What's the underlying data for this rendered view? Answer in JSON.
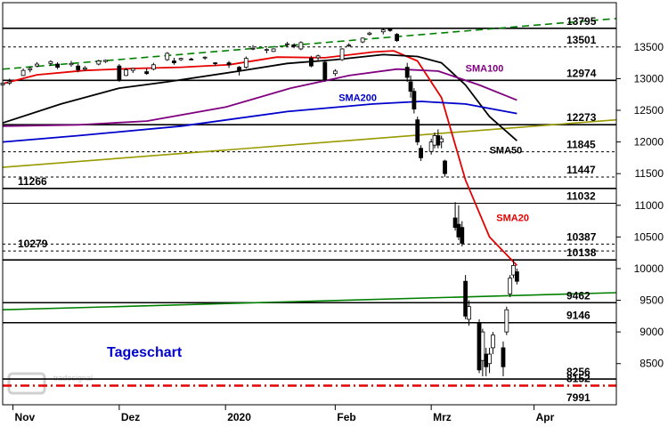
{
  "chart_data": {
    "type": "candlestick",
    "title": "Tageschart",
    "watermark": "tradesignal",
    "ylim": [
      7850,
      14200
    ],
    "y_ticks": [
      8500,
      9000,
      9500,
      10000,
      10500,
      11000,
      11500,
      12000,
      12500,
      13000,
      13500
    ],
    "x_labels": [
      "Nov",
      "Dez",
      "2020",
      "Feb",
      "Mrz",
      "Apr"
    ],
    "x_label_dates": [
      "2019-11-01",
      "2019-12-02",
      "2020-01-02",
      "2020-02-03",
      "2020-03-02",
      "2020-04-01"
    ],
    "x_range": [
      "2019-10-29",
      "2020-04-25"
    ],
    "colors": {
      "sma20": "#e60000",
      "sma50": "#000000",
      "sma100": "#800080",
      "sma200": "#0000cc",
      "up_candle": "#ffffff",
      "down_candle": "#000000",
      "trend_green": "#008000",
      "trend_olive": "#999900",
      "support_red": "#e60000"
    },
    "levels": [
      {
        "value": 13795,
        "label": "13795",
        "style": "solid",
        "label_side": "right"
      },
      {
        "value": 13501,
        "label": "13501",
        "style": "dashed",
        "label_side": "right"
      },
      {
        "value": 12974,
        "label": "12974",
        "style": "solid",
        "label_side": "right"
      },
      {
        "value": 12273,
        "label": "12273",
        "style": "solid",
        "label_side": "right"
      },
      {
        "value": 11845,
        "label": "11845",
        "style": "dashed",
        "label_side": "right"
      },
      {
        "value": 11447,
        "label": "11447",
        "style": "dashed",
        "label_side": "right"
      },
      {
        "value": 11266,
        "label": "11266",
        "style": "solid",
        "label_side": "left"
      },
      {
        "value": 11032,
        "label": "11032",
        "style": "thin",
        "label_side": "right"
      },
      {
        "value": 10387,
        "label": "10387",
        "style": "dashed",
        "label_side": "right"
      },
      {
        "value": 10279,
        "label": "10279",
        "style": "dashed",
        "label_side": "left"
      },
      {
        "value": 10138,
        "label": "10138",
        "style": "solid",
        "label_side": "right"
      },
      {
        "value": 9462,
        "label": "9462",
        "style": "solid",
        "label_side": "right"
      },
      {
        "value": 9146,
        "label": "9146",
        "style": "solid",
        "label_side": "right"
      },
      {
        "value": 8256,
        "label": "8256",
        "style": "solid",
        "label_side": "right"
      },
      {
        "value": 8152,
        "label": "8152",
        "style": "dashdot_red",
        "label_side": "right"
      },
      {
        "value": 7991,
        "label": "7991",
        "style": "none",
        "label_side": "right"
      }
    ],
    "trendlines": [
      {
        "name": "upper-trend",
        "from": [
          "2019-10-29",
          13150
        ],
        "to": [
          "2020-04-25",
          13950
        ],
        "color": "#008000",
        "style": "dashed"
      },
      {
        "name": "rising-support",
        "from": [
          "2019-10-29",
          11600
        ],
        "to": [
          "2020-04-25",
          12350
        ],
        "color": "#999900",
        "style": "solid"
      },
      {
        "name": "long-term-support",
        "from": [
          "2019-10-29",
          9350
        ],
        "to": [
          "2020-04-25",
          9620
        ],
        "color": "#008000",
        "style": "solid"
      }
    ],
    "series": [
      {
        "name": "SMA20",
        "label_at": [
          "2020-03-21",
          10750
        ],
        "points": [
          [
            "2019-10-29",
            12920
          ],
          [
            "2019-11-08",
            13060
          ],
          [
            "2019-11-22",
            13130
          ],
          [
            "2019-12-06",
            13160
          ],
          [
            "2019-12-20",
            13180
          ],
          [
            "2020-01-03",
            13220
          ],
          [
            "2020-01-17",
            13340
          ],
          [
            "2020-01-31",
            13330
          ],
          [
            "2020-02-14",
            13420
          ],
          [
            "2020-02-20",
            13440
          ],
          [
            "2020-02-27",
            13280
          ],
          [
            "2020-03-05",
            12700
          ],
          [
            "2020-03-12",
            11400
          ],
          [
            "2020-03-19",
            10500
          ],
          [
            "2020-03-27",
            10050
          ]
        ]
      },
      {
        "name": "SMA50",
        "label_at": [
          "2020-03-19",
          11820
        ],
        "points": [
          [
            "2019-10-29",
            12300
          ],
          [
            "2019-11-15",
            12600
          ],
          [
            "2019-12-02",
            12850
          ],
          [
            "2019-12-16",
            12950
          ],
          [
            "2020-01-06",
            13120
          ],
          [
            "2020-01-20",
            13240
          ],
          [
            "2020-02-03",
            13300
          ],
          [
            "2020-02-17",
            13380
          ],
          [
            "2020-02-27",
            13350
          ],
          [
            "2020-03-05",
            13250
          ],
          [
            "2020-03-12",
            12900
          ],
          [
            "2020-03-19",
            12400
          ],
          [
            "2020-03-27",
            12020
          ]
        ]
      },
      {
        "name": "SMA100",
        "label_at": [
          "2020-03-12",
          13110
        ],
        "points": [
          [
            "2019-10-29",
            12250
          ],
          [
            "2019-11-20",
            12270
          ],
          [
            "2019-12-10",
            12330
          ],
          [
            "2020-01-02",
            12550
          ],
          [
            "2020-01-21",
            12850
          ],
          [
            "2020-02-07",
            13050
          ],
          [
            "2020-02-21",
            13150
          ],
          [
            "2020-03-04",
            13120
          ],
          [
            "2020-03-16",
            12900
          ],
          [
            "2020-03-27",
            12660
          ]
        ]
      },
      {
        "name": "SMA200",
        "label_at": [
          "2020-02-04",
          12650
        ],
        "points": [
          [
            "2019-10-29",
            12000
          ],
          [
            "2019-11-20",
            12100
          ],
          [
            "2019-12-20",
            12250
          ],
          [
            "2020-01-20",
            12480
          ],
          [
            "2020-02-14",
            12600
          ],
          [
            "2020-02-28",
            12640
          ],
          [
            "2020-03-12",
            12600
          ],
          [
            "2020-03-27",
            12450
          ]
        ]
      }
    ],
    "candles_ohlc": [
      [
        "2019-10-29",
        12900,
        12960,
        12880,
        12930
      ],
      [
        "2019-10-31",
        12930,
        13000,
        12900,
        12950
      ],
      [
        "2019-11-04",
        13050,
        13160,
        13040,
        13130
      ],
      [
        "2019-11-06",
        13140,
        13190,
        13100,
        13160
      ],
      [
        "2019-11-08",
        13200,
        13260,
        13180,
        13230
      ],
      [
        "2019-11-12",
        13240,
        13290,
        13200,
        13270
      ],
      [
        "2019-11-14",
        13230,
        13260,
        13150,
        13180
      ],
      [
        "2019-11-18",
        13220,
        13280,
        13190,
        13240
      ],
      [
        "2019-11-20",
        13200,
        13230,
        13100,
        13140
      ],
      [
        "2019-11-22",
        13150,
        13200,
        13120,
        13170
      ],
      [
        "2019-11-26",
        13230,
        13300,
        13210,
        13280
      ],
      [
        "2019-11-28",
        13270,
        13300,
        13250,
        13290
      ],
      [
        "2019-12-02",
        13200,
        13230,
        12950,
        12980
      ],
      [
        "2019-12-04",
        13050,
        13170,
        13040,
        13140
      ],
      [
        "2019-12-06",
        13130,
        13170,
        13090,
        13160
      ],
      [
        "2019-12-10",
        13110,
        13160,
        13060,
        13080
      ],
      [
        "2019-12-12",
        13150,
        13250,
        13130,
        13220
      ],
      [
        "2019-12-16",
        13300,
        13420,
        13280,
        13400
      ],
      [
        "2019-12-18",
        13280,
        13330,
        13220,
        13250
      ],
      [
        "2019-12-20",
        13300,
        13330,
        13280,
        13320
      ],
      [
        "2019-12-23",
        13310,
        13330,
        13290,
        13300
      ],
      [
        "2019-12-27",
        13330,
        13350,
        13300,
        13340
      ],
      [
        "2019-12-30",
        13250,
        13260,
        13200,
        13240
      ],
      [
        "2020-01-03",
        13250,
        13280,
        13170,
        13220
      ],
      [
        "2020-01-06",
        13180,
        13200,
        13050,
        13130
      ],
      [
        "2020-01-08",
        13180,
        13350,
        13160,
        13320
      ],
      [
        "2020-01-10",
        13480,
        13530,
        13450,
        13480
      ],
      [
        "2020-01-14",
        13450,
        13480,
        13400,
        13460
      ],
      [
        "2020-01-16",
        13430,
        13480,
        13420,
        13470
      ],
      [
        "2020-01-20",
        13540,
        13580,
        13510,
        13550
      ],
      [
        "2020-01-22",
        13530,
        13560,
        13480,
        13510
      ],
      [
        "2020-01-24",
        13470,
        13590,
        13450,
        13570
      ],
      [
        "2020-01-27",
        13320,
        13360,
        13180,
        13200
      ],
      [
        "2020-01-29",
        13330,
        13380,
        13280,
        13360
      ],
      [
        "2020-01-31",
        13260,
        13280,
        12950,
        12980
      ],
      [
        "2020-02-03",
        13080,
        13150,
        13040,
        13120
      ],
      [
        "2020-02-05",
        13300,
        13480,
        13280,
        13470
      ],
      [
        "2020-02-07",
        13520,
        13560,
        13500,
        13530
      ],
      [
        "2020-02-11",
        13580,
        13650,
        13560,
        13640
      ],
      [
        "2020-02-13",
        13700,
        13740,
        13680,
        13720
      ],
      [
        "2020-02-17",
        13740,
        13790,
        13700,
        13770
      ],
      [
        "2020-02-19",
        13780,
        13795,
        13740,
        13760
      ],
      [
        "2020-02-21",
        13700,
        13720,
        13580,
        13600
      ],
      [
        "2020-02-24",
        13180,
        13250,
        12950,
        13020
      ],
      [
        "2020-02-25",
        12950,
        13050,
        12700,
        12800
      ],
      [
        "2020-02-26",
        12800,
        12850,
        12450,
        12520
      ],
      [
        "2020-02-27",
        12350,
        12400,
        11950,
        12000
      ],
      [
        "2020-02-28",
        11900,
        11950,
        11700,
        11750
      ],
      [
        "2020-03-02",
        11850,
        12050,
        11800,
        12000
      ],
      [
        "2020-03-03",
        11950,
        12150,
        11900,
        12100
      ],
      [
        "2020-03-04",
        12100,
        12200,
        11900,
        11950
      ],
      [
        "2020-03-05",
        12000,
        12100,
        11900,
        12050
      ],
      [
        "2020-03-06",
        11700,
        11720,
        11450,
        11500
      ],
      [
        "2020-03-09",
        10800,
        11050,
        10600,
        10650
      ],
      [
        "2020-03-10",
        10700,
        11000,
        10450,
        10500
      ],
      [
        "2020-03-11",
        10650,
        10750,
        10350,
        10400
      ],
      [
        "2020-03-12",
        9800,
        9900,
        9200,
        9250
      ],
      [
        "2020-03-13",
        9200,
        9500,
        9100,
        9400
      ],
      [
        "2020-03-16",
        9150,
        9200,
        8350,
        8400
      ],
      [
        "2020-03-17",
        8550,
        9050,
        8300,
        9000
      ],
      [
        "2020-03-18",
        8650,
        8750,
        8300,
        8450
      ],
      [
        "2020-03-19",
        8500,
        8750,
        8350,
        8650
      ],
      [
        "2020-03-20",
        8750,
        9000,
        8650,
        8950
      ],
      [
        "2020-03-23",
        8750,
        8850,
        8300,
        8450
      ],
      [
        "2020-03-24",
        9000,
        9400,
        8950,
        9350
      ],
      [
        "2020-03-25",
        9600,
        9900,
        9550,
        9850
      ],
      [
        "2020-03-26",
        9900,
        10150,
        9850,
        10050
      ],
      [
        "2020-03-27",
        9950,
        10000,
        9750,
        9800
      ]
    ]
  }
}
